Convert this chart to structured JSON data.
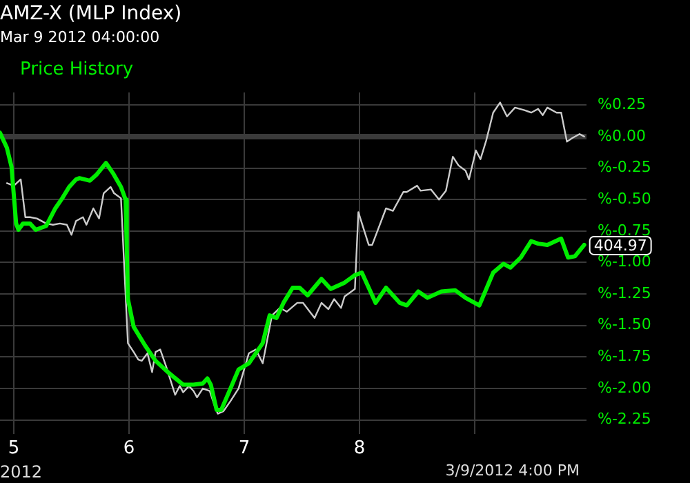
{
  "chart_data": {
    "type": "line",
    "title": "AMZ-X (MLP Index)",
    "subtitle": "Mar 9 2012 04:00:00",
    "annotations": [
      "2012",
      "3/9/2012 4:00 PM",
      {
        "text": "404.97",
        "x": 9.95,
        "y": -0.86
      }
    ],
    "xlim": [
      4.88,
      9.97
    ],
    "xticks": [
      5,
      6,
      7,
      8,
      {
        "value": 9,
        "label": null
      }
    ],
    "ylim": [
      -2.36,
      0.35
    ],
    "yticks": [
      {
        "value": 0.25,
        "label": "%0.25"
      },
      {
        "value": 0,
        "label": "%0.00"
      },
      {
        "value": -0.25,
        "label": "%-0.25"
      },
      {
        "value": -0.5,
        "label": "%-0.50"
      },
      {
        "value": -0.75,
        "label": "%-0.75"
      },
      {
        "value": -1,
        "label": "%-1.00"
      },
      {
        "value": -1.25,
        "label": "%-1.25"
      },
      {
        "value": -1.5,
        "label": "%-1.50"
      },
      {
        "value": -1.75,
        "label": "%-1.75"
      },
      {
        "value": -2,
        "label": "%-2.00"
      },
      {
        "value": -2.25,
        "label": "%-2.25"
      }
    ],
    "grid": true,
    "legend": "top left",
    "marker": "none",
    "line_style": "solid",
    "ref_lines": [
      {
        "axis": "y",
        "value": 0,
        "color": "#3a3a3a"
      }
    ],
    "series": [
      {
        "color": "#cccccc",
        "x": [
          4.94,
          5.0,
          5.06,
          5.1,
          5.14,
          5.2,
          5.28,
          5.34,
          5.4,
          5.46,
          5.5,
          5.54,
          5.6,
          5.63,
          5.69,
          5.74,
          5.78,
          5.84,
          5.87,
          5.93,
          5.99,
          6.04,
          6.08,
          6.11,
          6.16,
          6.2,
          6.23,
          6.27,
          6.32,
          6.4,
          6.44,
          6.47,
          6.52,
          6.56,
          6.59,
          6.64,
          6.7,
          6.74,
          6.77,
          6.82,
          6.88,
          6.95,
          7.04,
          7.1,
          7.16,
          7.24,
          7.31,
          7.37,
          7.46,
          7.51,
          7.61,
          7.67,
          7.73,
          7.78,
          7.84,
          7.87,
          7.96,
          7.99,
          8.08,
          8.11,
          8.23,
          8.29,
          8.38,
          8.41,
          8.5,
          8.53,
          8.62,
          8.69,
          8.75,
          8.81,
          8.86,
          8.92,
          8.95,
          9.01,
          9.05,
          9.1,
          9.16,
          9.22,
          9.28,
          9.35,
          9.43,
          9.49,
          9.55,
          9.59,
          9.63,
          9.71,
          9.75,
          9.8,
          9.85,
          9.91,
          9.95
        ],
        "values": [
          -0.37,
          -0.39,
          -0.34,
          -0.64,
          -0.64,
          -0.65,
          -0.69,
          -0.7,
          -0.69,
          -0.7,
          -0.78,
          -0.67,
          -0.64,
          -0.7,
          -0.57,
          -0.65,
          -0.45,
          -0.4,
          -0.45,
          -0.49,
          -1.64,
          -1.71,
          -1.77,
          -1.78,
          -1.72,
          -1.87,
          -1.71,
          -1.69,
          -1.82,
          -2.05,
          -1.98,
          -2.03,
          -1.98,
          -2.02,
          -2.07,
          -2.0,
          -2.02,
          -2.13,
          -2.2,
          -2.18,
          -2.1,
          -2.0,
          -1.72,
          -1.69,
          -1.8,
          -1.42,
          -1.36,
          -1.39,
          -1.32,
          -1.32,
          -1.44,
          -1.32,
          -1.37,
          -1.29,
          -1.36,
          -1.27,
          -1.21,
          -0.6,
          -0.86,
          -0.86,
          -0.57,
          -0.59,
          -0.44,
          -0.44,
          -0.39,
          -0.43,
          -0.42,
          -0.5,
          -0.43,
          -0.16,
          -0.23,
          -0.27,
          -0.34,
          -0.11,
          -0.18,
          -0.03,
          0.19,
          0.27,
          0.16,
          0.23,
          0.21,
          0.19,
          0.22,
          0.17,
          0.23,
          0.19,
          0.19,
          -0.04,
          -0.01,
          0.02,
          0.0
        ]
      },
      {
        "name": "Price History",
        "color": "#00ee00",
        "x": [
          4.88,
          4.94,
          4.98,
          5.02,
          5.04,
          5.08,
          5.14,
          5.19,
          5.28,
          5.36,
          5.42,
          5.48,
          5.54,
          5.57,
          5.66,
          5.72,
          5.8,
          5.86,
          5.93,
          5.97,
          5.98,
          5.99,
          6.04,
          6.14,
          6.23,
          6.35,
          6.47,
          6.56,
          6.64,
          6.68,
          6.71,
          6.76,
          6.8,
          6.88,
          6.95,
          7.04,
          7.16,
          7.22,
          7.28,
          7.34,
          7.42,
          7.48,
          7.55,
          7.67,
          7.75,
          7.87,
          7.96,
          8.02,
          8.14,
          8.23,
          8.35,
          8.41,
          8.51,
          8.59,
          8.71,
          8.83,
          8.92,
          9.04,
          9.16,
          9.25,
          9.31,
          9.4,
          9.49,
          9.55,
          9.63,
          9.75,
          9.81,
          9.87,
          9.95
        ],
        "values": [
          0.03,
          -0.09,
          -0.24,
          -0.69,
          -0.74,
          -0.69,
          -0.69,
          -0.74,
          -0.71,
          -0.57,
          -0.49,
          -0.4,
          -0.34,
          -0.33,
          -0.35,
          -0.3,
          -0.21,
          -0.29,
          -0.4,
          -0.5,
          -0.88,
          -1.29,
          -1.51,
          -1.66,
          -1.78,
          -1.88,
          -1.97,
          -1.97,
          -1.96,
          -1.92,
          -1.97,
          -2.17,
          -2.17,
          -2.0,
          -1.85,
          -1.8,
          -1.64,
          -1.42,
          -1.44,
          -1.32,
          -1.2,
          -1.2,
          -1.26,
          -1.13,
          -1.21,
          -1.16,
          -1.1,
          -1.08,
          -1.32,
          -1.2,
          -1.32,
          -1.34,
          -1.23,
          -1.28,
          -1.23,
          -1.22,
          -1.28,
          -1.34,
          -1.08,
          -1.01,
          -1.04,
          -0.96,
          -0.83,
          -0.85,
          -0.86,
          -0.81,
          -0.96,
          -0.95,
          -0.86
        ]
      }
    ]
  }
}
